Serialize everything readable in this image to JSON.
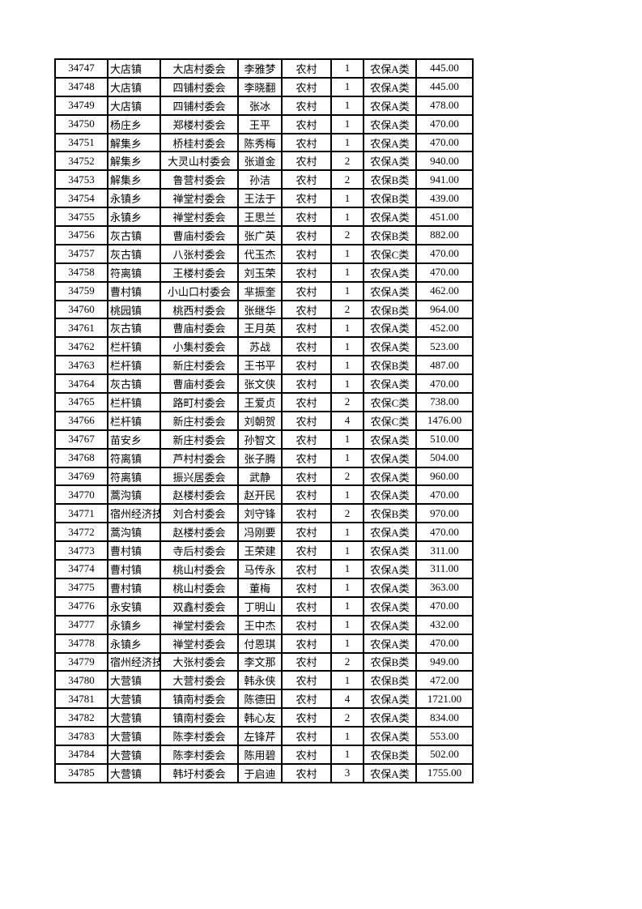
{
  "table": {
    "rows": [
      [
        "34747",
        "大店镇",
        "大店村委会",
        "李雅梦",
        "农村",
        "1",
        "农保A类",
        "445.00"
      ],
      [
        "34748",
        "大店镇",
        "四铺村委会",
        "李晓翻",
        "农村",
        "1",
        "农保A类",
        "445.00"
      ],
      [
        "34749",
        "大店镇",
        "四铺村委会",
        "张冰",
        "农村",
        "1",
        "农保A类",
        "478.00"
      ],
      [
        "34750",
        "杨庄乡",
        "郑楼村委会",
        "王平",
        "农村",
        "1",
        "农保A类",
        "470.00"
      ],
      [
        "34751",
        "解集乡",
        "桥桂村委会",
        "陈秀梅",
        "农村",
        "1",
        "农保A类",
        "470.00"
      ],
      [
        "34752",
        "解集乡",
        "大灵山村委会",
        "张道金",
        "农村",
        "2",
        "农保A类",
        "940.00"
      ],
      [
        "34753",
        "解集乡",
        "鲁营村委会",
        "孙洁",
        "农村",
        "2",
        "农保B类",
        "941.00"
      ],
      [
        "34754",
        "永镇乡",
        "禅堂村委会",
        "王法于",
        "农村",
        "1",
        "农保B类",
        "439.00"
      ],
      [
        "34755",
        "永镇乡",
        "禅堂村委会",
        "王思兰",
        "农村",
        "1",
        "农保A类",
        "451.00"
      ],
      [
        "34756",
        "灰古镇",
        "曹庙村委会",
        "张广英",
        "农村",
        "2",
        "农保B类",
        "882.00"
      ],
      [
        "34757",
        "灰古镇",
        "八张村委会",
        "代玉杰",
        "农村",
        "1",
        "农保C类",
        "470.00"
      ],
      [
        "34758",
        "符离镇",
        "王楼村委会",
        "刘玉荣",
        "农村",
        "1",
        "农保A类",
        "470.00"
      ],
      [
        "34759",
        "曹村镇",
        "小山口村委会",
        "芈振奎",
        "农村",
        "1",
        "农保A类",
        "462.00"
      ],
      [
        "34760",
        "桃园镇",
        "桃西村委会",
        "张继华",
        "农村",
        "2",
        "农保B类",
        "964.00"
      ],
      [
        "34761",
        "灰古镇",
        "曹庙村委会",
        "王月英",
        "农村",
        "1",
        "农保A类",
        "452.00"
      ],
      [
        "34762",
        "栏杆镇",
        "小集村委会",
        "苏战",
        "农村",
        "1",
        "农保A类",
        "523.00"
      ],
      [
        "34763",
        "栏杆镇",
        "新庄村委会",
        "王书平",
        "农村",
        "1",
        "农保B类",
        "487.00"
      ],
      [
        "34764",
        "灰古镇",
        "曹庙村委会",
        "张文侠",
        "农村",
        "1",
        "农保A类",
        "470.00"
      ],
      [
        "34765",
        "栏杆镇",
        "路町村委会",
        "王爱贞",
        "农村",
        "2",
        "农保C类",
        "738.00"
      ],
      [
        "34766",
        "栏杆镇",
        "新庄村委会",
        "刘朝贺",
        "农村",
        "4",
        "农保C类",
        "1476.00"
      ],
      [
        "34767",
        "苗安乡",
        "新庄村委会",
        "孙智文",
        "农村",
        "1",
        "农保A类",
        "510.00"
      ],
      [
        "34768",
        "符离镇",
        "芦村村委会",
        "张子腾",
        "农村",
        "1",
        "农保A类",
        "504.00"
      ],
      [
        "34769",
        "符离镇",
        "振兴居委会",
        "武静",
        "农村",
        "2",
        "农保A类",
        "960.00"
      ],
      [
        "34770",
        "蒿沟镇",
        "赵楼村委会",
        "赵开民",
        "农村",
        "1",
        "农保A类",
        "470.00"
      ],
      [
        "34771",
        "宿州经济技",
        "刘合村委会",
        "刘守锋",
        "农村",
        "2",
        "农保B类",
        "970.00"
      ],
      [
        "34772",
        "蒿沟镇",
        "赵楼村委会",
        "冯刚要",
        "农村",
        "1",
        "农保A类",
        "470.00"
      ],
      [
        "34773",
        "曹村镇",
        "寺后村委会",
        "王荣建",
        "农村",
        "1",
        "农保A类",
        "311.00"
      ],
      [
        "34774",
        "曹村镇",
        "桃山村委会",
        "马传永",
        "农村",
        "1",
        "农保A类",
        "311.00"
      ],
      [
        "34775",
        "曹村镇",
        "桃山村委会",
        "董梅",
        "农村",
        "1",
        "农保A类",
        "363.00"
      ],
      [
        "34776",
        "永安镇",
        "双鑫村委会",
        "丁明山",
        "农村",
        "1",
        "农保A类",
        "470.00"
      ],
      [
        "34777",
        "永镇乡",
        "禅堂村委会",
        "王中杰",
        "农村",
        "1",
        "农保A类",
        "432.00"
      ],
      [
        "34778",
        "永镇乡",
        "禅堂村委会",
        "付恩琪",
        "农村",
        "1",
        "农保A类",
        "470.00"
      ],
      [
        "34779",
        "宿州经济技",
        "大张村委会",
        "李文那",
        "农村",
        "2",
        "农保B类",
        "949.00"
      ],
      [
        "34780",
        "大营镇",
        "大营村委会",
        "韩永侠",
        "农村",
        "1",
        "农保B类",
        "472.00"
      ],
      [
        "34781",
        "大营镇",
        "镇南村委会",
        "陈德田",
        "农村",
        "4",
        "农保A类",
        "1721.00"
      ],
      [
        "34782",
        "大营镇",
        "镇南村委会",
        "韩心友",
        "农村",
        "2",
        "农保A类",
        "834.00"
      ],
      [
        "34783",
        "大营镇",
        "陈李村委会",
        "左锋芹",
        "农村",
        "1",
        "农保A类",
        "553.00"
      ],
      [
        "34784",
        "大营镇",
        "陈李村委会",
        "陈用碧",
        "农村",
        "1",
        "农保B类",
        "502.00"
      ],
      [
        "34785",
        "大营镇",
        "韩圩村委会",
        "于启迪",
        "农村",
        "3",
        "农保A类",
        "1755.00"
      ]
    ]
  }
}
